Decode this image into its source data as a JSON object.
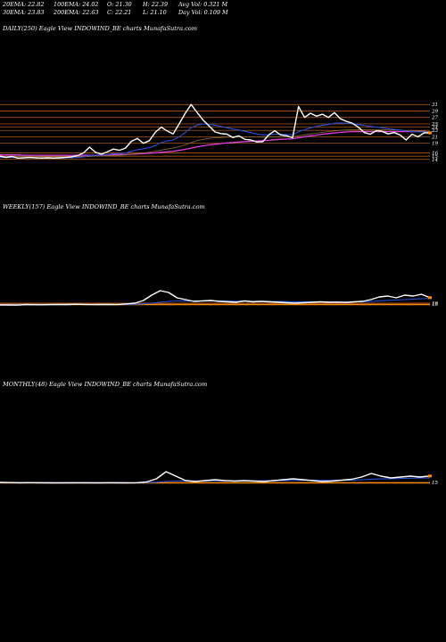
{
  "header": {
    "row1": [
      "20EMA: 22.82",
      "100EMA: 24.02",
      "O: 21.30",
      "H: 22.39",
      "Avg Vol: 0.321 M"
    ],
    "row2": [
      "30EMA: 23.83",
      "200EMA: 22.63",
      "C: 22.21",
      "L: 21.10",
      "Day Vol: 0.109 M"
    ]
  },
  "panels": [
    {
      "label": "DAILY(250) Eagle   View  INDOWIND_BE charts MunafaSutra.com"
    },
    {
      "label": "WEEKLY(157) Eagle   View  INDOWIND_BE charts MunafaSutra.com"
    },
    {
      "label": "MONTHLY(48) Eagle   View  INDOWIND_BE charts MunafaSutra.com"
    }
  ],
  "colors": {
    "background": "#000000",
    "price": "#ffffff",
    "ema_short": "#2a4fd6",
    "ema_long": "#e040e0",
    "levels": "#c8661e",
    "highlight": "#ff8c00"
  },
  "chart_data": [
    {
      "type": "line",
      "title": "DAILY(250)",
      "y_ticks": [
        "31",
        "29",
        "27",
        "25",
        "24",
        "23",
        "21",
        "19",
        "16",
        "15",
        "14"
      ],
      "ylim": [
        12,
        33
      ],
      "series": [
        {
          "values": [
            15.0,
            14.6,
            14.9,
            14.4,
            14.5,
            14.6,
            14.5,
            14.4,
            14.5,
            14.4,
            14.5,
            14.6,
            14.8,
            15.2,
            16.0,
            17.8,
            16.2,
            15.6,
            16.4,
            17.2,
            16.8,
            17.5,
            19.6,
            20.5,
            19.0,
            19.8,
            22.4,
            24.0,
            22.8,
            21.9,
            25.0,
            28.2,
            31.0,
            28.6,
            26.2,
            24.4,
            22.5,
            22.0,
            21.8,
            20.8,
            21.3,
            20.2,
            20.0,
            19.4,
            19.5,
            21.6,
            22.9,
            21.6,
            21.3,
            20.7,
            30.4,
            27.0,
            28.3,
            27.4,
            28.0,
            27.0,
            28.5,
            26.6,
            25.8,
            25.2,
            24.0,
            22.3,
            21.8,
            22.9,
            22.7,
            21.9,
            22.3,
            21.6,
            20.0,
            21.8,
            21.0,
            22.2,
            22.21
          ]
        },
        {
          "values": [
            14.6,
            14.6,
            14.6,
            14.5,
            14.5,
            14.5,
            14.5,
            14.5,
            14.5,
            14.4,
            14.4,
            14.5,
            14.5,
            14.6,
            14.8,
            15.2,
            15.3,
            15.4,
            15.5,
            15.7,
            15.8,
            16.0,
            16.5,
            17.0,
            17.3,
            17.6,
            18.3,
            19.2,
            19.7,
            20.0,
            21.0,
            22.3,
            23.8,
            24.6,
            25.0,
            24.9,
            24.6,
            24.2,
            23.8,
            23.4,
            23.1,
            22.7,
            22.3,
            21.9,
            21.6,
            21.6,
            21.8,
            21.8,
            21.7,
            21.6,
            22.6,
            23.2,
            23.8,
            24.2,
            24.6,
            24.8,
            25.2,
            25.3,
            25.2,
            25.1,
            24.8,
            24.5,
            24.2,
            24.0,
            23.8,
            23.5,
            23.3,
            23.1,
            22.8,
            22.7,
            22.5,
            22.5,
            22.4
          ]
        },
        {
          "values": [
            14.9,
            14.9,
            14.9,
            14.9,
            14.9,
            14.9,
            14.9,
            14.8,
            14.8,
            14.8,
            14.8,
            14.8,
            14.8,
            14.8,
            14.8,
            14.9,
            15.0,
            15.0,
            15.1,
            15.2,
            15.3,
            15.4,
            15.6,
            15.8,
            16.0,
            16.2,
            16.5,
            16.9,
            17.2,
            17.5,
            17.9,
            18.5,
            19.2,
            19.8,
            20.2,
            20.5,
            20.7,
            20.8,
            20.9,
            21.0,
            21.0,
            21.0,
            21.0,
            21.0,
            20.9,
            20.9,
            21.0,
            21.0,
            21.0,
            21.0,
            21.3,
            21.6,
            21.9,
            22.1,
            22.4,
            22.6,
            22.8,
            23.0,
            23.1,
            23.2,
            23.2,
            23.2,
            23.2,
            23.2,
            23.2,
            23.1,
            23.1,
            23.0,
            22.9,
            22.9,
            22.8,
            22.8,
            22.6
          ]
        },
        {
          "values": [
            15.4,
            15.4,
            15.4,
            15.4,
            15.3,
            15.3,
            15.3,
            15.3,
            15.3,
            15.3,
            15.3,
            15.3,
            15.3,
            15.3,
            15.3,
            15.3,
            15.3,
            15.4,
            15.4,
            15.4,
            15.5,
            15.5,
            15.6,
            15.7,
            15.8,
            15.9,
            16.0,
            16.2,
            16.4,
            16.5,
            16.8,
            17.1,
            17.5,
            17.9,
            18.2,
            18.5,
            18.7,
            18.9,
            19.1,
            19.2,
            19.4,
            19.5,
            19.6,
            19.7,
            19.8,
            19.9,
            20.1,
            20.2,
            20.3,
            20.4,
            20.7,
            21.0,
            21.3,
            21.5,
            21.8,
            22.0,
            22.2,
            22.4,
            22.5,
            22.6,
            22.6,
            22.6,
            22.6,
            22.6,
            22.6,
            22.6,
            22.6,
            22.6,
            22.6,
            22.6,
            22.6,
            22.6,
            22.6
          ]
        }
      ]
    },
    {
      "type": "line",
      "title": "WEEKLY(157)",
      "y_ticks": [
        "16",
        "15"
      ],
      "ylim": [
        -10,
        36
      ],
      "series": [
        {
          "values": [
            14,
            14,
            13.8,
            14.5,
            14.3,
            14.2,
            14.4,
            14.6,
            14.5,
            14.8,
            14.6,
            14.4,
            14.6,
            14.5,
            14.4,
            15.2,
            16,
            19,
            25,
            30,
            28,
            22,
            20,
            18,
            18.5,
            19,
            18,
            17.5,
            17,
            18.5,
            17.5,
            18,
            17.5,
            17,
            16.5,
            16,
            16.5,
            17,
            17.5,
            17,
            17.2,
            16.8,
            17.5,
            18,
            20,
            23,
            24,
            22,
            25,
            24,
            26,
            22.21
          ]
        },
        {
          "values": [
            14.2,
            14.2,
            14.2,
            14.3,
            14.3,
            14.3,
            14.3,
            14.4,
            14.4,
            14.5,
            14.5,
            14.5,
            14.5,
            14.5,
            14.5,
            14.6,
            14.8,
            15.2,
            16,
            17,
            18,
            18.5,
            18.6,
            18.6,
            18.6,
            18.7,
            18.6,
            18.4,
            18.2,
            18.2,
            18.1,
            18.1,
            18,
            17.9,
            17.8,
            17.6,
            17.5,
            17.5,
            17.5,
            17.5,
            17.4,
            17.4,
            17.5,
            17.6,
            18,
            18.6,
            19.2,
            19.5,
            20,
            20.4,
            21,
            21.2
          ]
        }
      ]
    },
    {
      "type": "line",
      "title": "MONTHLY(48)",
      "y_ticks": [
        "15"
      ],
      "ylim": [
        -10,
        36
      ],
      "series": [
        {
          "values": [
            15,
            14.8,
            14.6,
            14.7,
            14.6,
            14.5,
            14.4,
            14.5,
            14.6,
            14.5,
            14.4,
            14.6,
            14.5,
            14.4,
            14.6,
            15.5,
            19,
            27,
            22,
            17,
            16,
            17,
            18,
            17,
            16.5,
            17,
            16.5,
            16,
            17,
            18,
            19,
            18,
            17,
            16,
            16.5,
            17.5,
            18.5,
            21,
            25,
            22,
            20,
            21,
            22,
            21,
            22.21
          ]
        },
        {
          "values": [
            14.8,
            14.8,
            14.8,
            14.7,
            14.7,
            14.7,
            14.7,
            14.7,
            14.7,
            14.7,
            14.7,
            14.7,
            14.7,
            14.7,
            14.7,
            14.8,
            15.2,
            16,
            16.5,
            16.6,
            16.6,
            16.7,
            16.8,
            16.8,
            16.8,
            16.8,
            16.8,
            16.8,
            16.9,
            17,
            17.2,
            17.3,
            17.3,
            17.3,
            17.3,
            17.4,
            17.6,
            18,
            18.6,
            18.9,
            19.1,
            19.4,
            19.7,
            19.9,
            20.1
          ]
        }
      ]
    }
  ]
}
